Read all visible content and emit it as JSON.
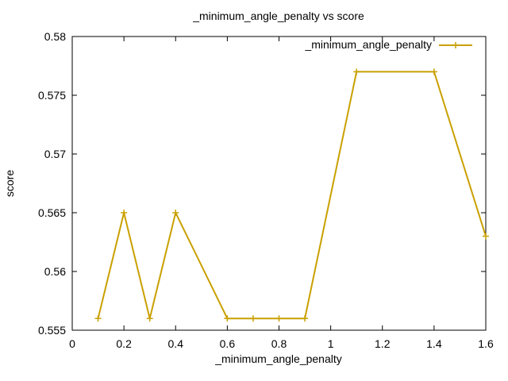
{
  "chart_data": {
    "type": "line",
    "title": "_minimum_angle_penalty vs score",
    "xlabel": "_minimum_angle_penalty",
    "ylabel": "score",
    "xlim": [
      0,
      1.6
    ],
    "ylim": [
      0.555,
      0.58
    ],
    "x_ticks": [
      "0",
      "0.2",
      "0.4",
      "0.6",
      "0.8",
      "1",
      "1.2",
      "1.4",
      "1.6"
    ],
    "y_ticks": [
      "0.555",
      "0.56",
      "0.565",
      "0.57",
      "0.575",
      "0.58"
    ],
    "grid": false,
    "legend_position": "top-right",
    "series": [
      {
        "name": "_minimum_angle_penalty",
        "color": "#c9a000",
        "marker": "plus",
        "x": [
          0.1,
          0.2,
          0.3,
          0.4,
          0.6,
          0.7,
          0.8,
          0.9,
          1.1,
          1.4,
          1.6
        ],
        "y": [
          0.556,
          0.565,
          0.556,
          0.565,
          0.556,
          0.556,
          0.556,
          0.556,
          0.577,
          0.577,
          0.563
        ]
      }
    ]
  }
}
